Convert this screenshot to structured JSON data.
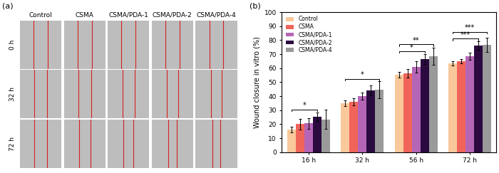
{
  "image_panel": {
    "label": "(a)",
    "columns": [
      "Control",
      "CSMA",
      "CSMA/PDA-1",
      "CSMA/PDA-2",
      "CSMA/PDA-4"
    ],
    "rows": [
      "0 h",
      "32 h",
      "72 h"
    ]
  },
  "chart_data": {
    "type": "bar",
    "title": "(b)",
    "y_label": "Wound closure in vitro (%)",
    "categories": [
      "16 h",
      "32 h",
      "56 h",
      "72 h"
    ],
    "series": [
      {
        "name": "Control",
        "color": "#f9c89b",
        "values": [
          16,
          35,
          55.5,
          63.5
        ],
        "errors": [
          2,
          2,
          2,
          1.5
        ]
      },
      {
        "name": "CSMA",
        "color": "#f0645a",
        "values": [
          20,
          36,
          56.5,
          65
        ],
        "errors": [
          4,
          2.5,
          3,
          1.5
        ]
      },
      {
        "name": "CSMA/PDA-1",
        "color": "#b565b5",
        "values": [
          20.5,
          40,
          61,
          68.5
        ],
        "errors": [
          4,
          2.5,
          4,
          2.5
        ]
      },
      {
        "name": "CSMA/PDA-2",
        "color": "#2a0a3f",
        "values": [
          25.5,
          44,
          66.5,
          76
        ],
        "errors": [
          3,
          3.5,
          3.5,
          3
        ]
      },
      {
        "name": "CSMA/PDA-4",
        "color": "#9a9a9a",
        "values": [
          23.5,
          44.5,
          68.5,
          76.5
        ],
        "errors": [
          7,
          6,
          6,
          5
        ]
      }
    ],
    "annotations": [
      {
        "category": "16 h",
        "from": "Control",
        "to": "CSMA/PDA-2",
        "label": "*"
      },
      {
        "category": "32 h",
        "from": "Control",
        "to": "CSMA/PDA-4",
        "label": "*"
      },
      {
        "category": "56 h",
        "from": "Control",
        "to": "CSMA/PDA-2",
        "label": "*"
      },
      {
        "category": "56 h",
        "from": "Control",
        "to": "CSMA/PDA-4",
        "label": "**"
      },
      {
        "category": "72 h",
        "from": "Control",
        "to": "CSMA/PDA-2",
        "label": "***"
      },
      {
        "category": "72 h",
        "from": "Control",
        "to": "CSMA/PDA-4",
        "label": "***"
      }
    ],
    "ylim": [
      0,
      100
    ],
    "yticks": [
      0,
      10,
      20,
      30,
      40,
      50,
      60,
      70,
      80,
      90,
      100
    ],
    "legend": "upper left"
  }
}
